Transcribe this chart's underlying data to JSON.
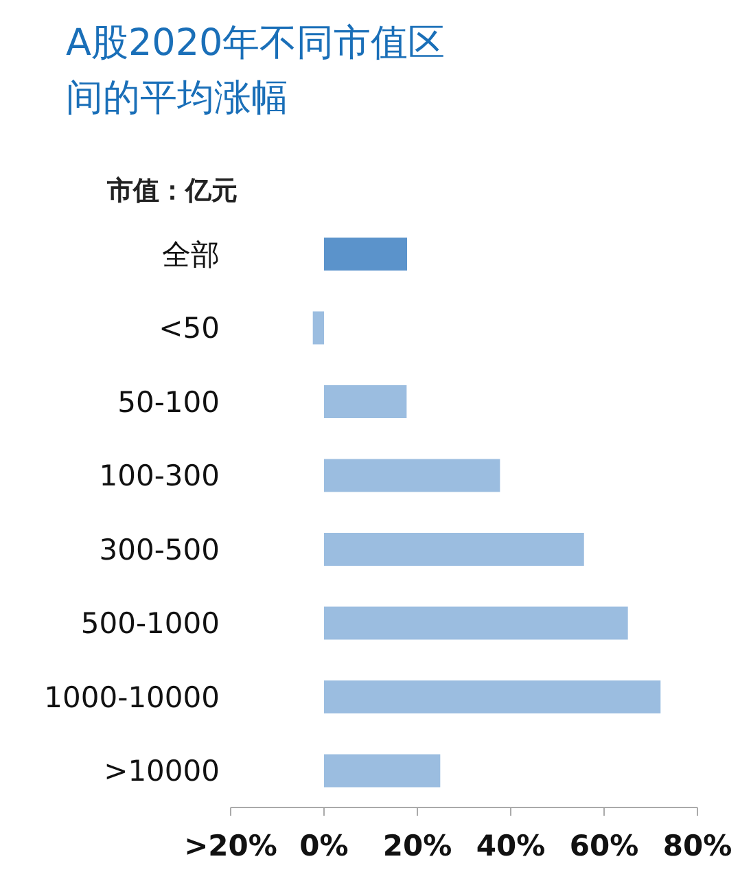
{
  "chart_data": {
    "type": "bar",
    "orientation": "horizontal",
    "title": "A股2020年不同市值区间的平均涨幅",
    "ylabel": "市值：亿元",
    "categories": [
      "全部",
      "<50",
      "50-100",
      "100-300",
      "300-500",
      "500-1000",
      "1000-10000",
      ">10000"
    ],
    "values": [
      17.8,
      -2.4,
      17.7,
      37.7,
      55.7,
      65.1,
      72.1,
      24.9
    ],
    "colors": [
      "#5b93cb",
      "#9bbde0",
      "#9bbde0",
      "#9bbde0",
      "#9bbde0",
      "#9bbde0",
      "#9bbde0",
      "#9bbde0"
    ],
    "xlim": [
      -20,
      80
    ],
    "xticks": [
      {
        "value": -20,
        "label": ">20%"
      },
      {
        "value": 0,
        "label": "0%"
      },
      {
        "value": 20,
        "label": "20%"
      },
      {
        "value": 40,
        "label": "40%"
      },
      {
        "value": 60,
        "label": "60%"
      },
      {
        "value": 80,
        "label": "80%"
      }
    ],
    "grid": false,
    "legend": false
  }
}
